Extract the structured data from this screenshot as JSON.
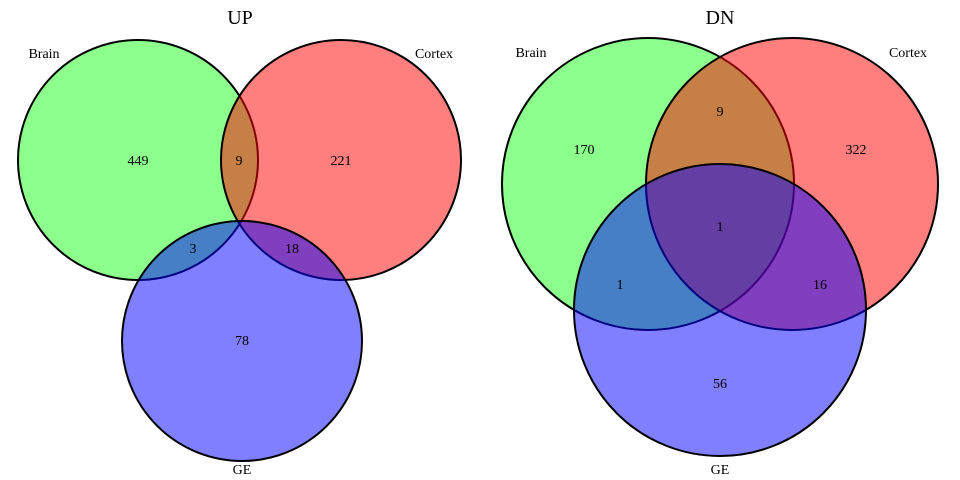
{
  "diagrams": [
    {
      "title": "UP",
      "sets": [
        {
          "name": "Brain",
          "color": "#00ff00",
          "opacity": 0.45
        },
        {
          "name": "Cortex",
          "color": "#ff0000",
          "opacity": 0.5
        },
        {
          "name": "GE",
          "color": "#0000ff",
          "opacity": 0.5
        }
      ],
      "counts": {
        "brain_only": "449",
        "brain_cortex": "9",
        "cortex_only": "221",
        "brain_ge": "3",
        "cortex_ge": "18",
        "ge_only": "78"
      }
    },
    {
      "title": "DN",
      "sets": [
        {
          "name": "Brain",
          "color": "#00ff00",
          "opacity": 0.45
        },
        {
          "name": "Cortex",
          "color": "#ff0000",
          "opacity": 0.5
        },
        {
          "name": "GE",
          "color": "#0000ff",
          "opacity": 0.5
        }
      ],
      "counts": {
        "brain_only": "170",
        "brain_cortex": "9",
        "cortex_only": "322",
        "all_three": "1",
        "brain_ge": "1",
        "cortex_ge": "16",
        "ge_only": "56"
      }
    }
  ]
}
